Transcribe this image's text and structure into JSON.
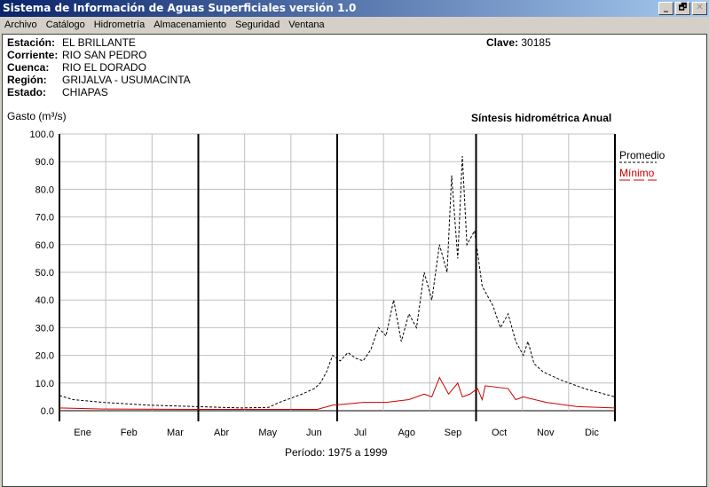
{
  "window": {
    "title": "Sistema de Información de Aguas Superficiales  versión 1.0",
    "controls": [
      "_",
      "🗗",
      "✕"
    ]
  },
  "menu": [
    "Archivo",
    "Catálogo",
    "Hidrometría",
    "Almacenamiento",
    "Seguridad",
    "Ventana"
  ],
  "station": {
    "rows": [
      {
        "label": "Estación:",
        "value": "EL BRILLANTE"
      },
      {
        "label": "Corriente:",
        "value": "RIO SAN PEDRO"
      },
      {
        "label": "Cuenca:",
        "value": "RIO EL DORADO"
      },
      {
        "label": "Región:",
        "value": "GRIJALVA - USUMACINTA"
      },
      {
        "label": "Estado:",
        "value": "CHIAPAS"
      }
    ],
    "clave_label": "Clave:",
    "clave": "30185"
  },
  "periodo": "Período:  1975 a 1999",
  "chart_data": {
    "type": "line",
    "title": "Síntesis hidrométrica   Anual",
    "ylabel": "Gasto (m³/s)",
    "ylim": [
      0,
      100
    ],
    "yticks": [
      "0.0",
      "10.0",
      "20.0",
      "30.0",
      "40.0",
      "50.0",
      "60.0",
      "70.0",
      "80.0",
      "90.0",
      "100.0"
    ],
    "categories": [
      "Ene",
      "Feb",
      "Mar",
      "Abr",
      "May",
      "Jun",
      "Jul",
      "Ago",
      "Sep",
      "Oct",
      "Nov",
      "Dic"
    ],
    "grid": true,
    "legend_placement": "right",
    "series": [
      {
        "name": "Promedio",
        "color": "#000000",
        "style": "dashed",
        "x": [
          1,
          10,
          30,
          60,
          90,
          120,
          138,
          145,
          150,
          160,
          168,
          172,
          176,
          180,
          185,
          190,
          195,
          200,
          205,
          210,
          215,
          220,
          225,
          230,
          235,
          240,
          245,
          250,
          255,
          258,
          262,
          265,
          268,
          273,
          278,
          285,
          290,
          295,
          300,
          305,
          308,
          312,
          318,
          330,
          345,
          365
        ],
        "y": [
          5.5,
          4,
          3,
          2,
          1.5,
          1,
          1.2,
          3,
          4,
          6,
          8,
          10,
          14,
          20,
          18,
          21,
          19,
          18,
          22,
          30,
          27,
          40,
          25,
          35,
          30,
          50,
          40,
          60,
          50,
          85,
          55,
          92,
          60,
          65,
          45,
          38,
          30,
          35,
          25,
          20,
          25,
          17,
          14,
          11,
          8,
          5
        ]
      },
      {
        "name": "Mínimo",
        "color": "#cc0000",
        "style": "solid",
        "x": [
          1,
          30,
          90,
          170,
          180,
          190,
          200,
          215,
          230,
          240,
          245,
          250,
          256,
          262,
          265,
          270,
          275,
          278,
          280,
          295,
          300,
          305,
          320,
          340,
          365
        ],
        "y": [
          1,
          0.6,
          0.5,
          0.5,
          2,
          2.5,
          3,
          3,
          4,
          6,
          5,
          12,
          6,
          10,
          5,
          6,
          8,
          4,
          9,
          8,
          4,
          5,
          3,
          1.5,
          1
        ]
      }
    ]
  }
}
